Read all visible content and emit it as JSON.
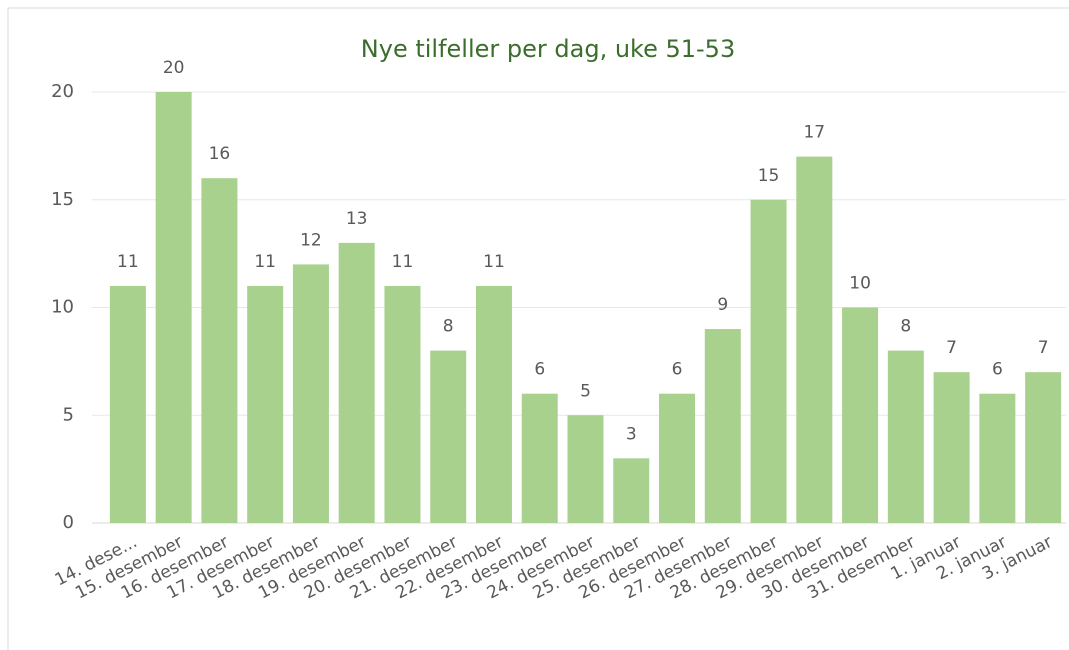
{
  "chart_data": {
    "type": "bar",
    "title": "Nye tilfeller per dag, uke 51-53",
    "categories": [
      "14. dese...",
      "15. desember",
      "16. desember",
      "17. desember",
      "18. desember",
      "19. desember",
      "20. desember",
      "21. desember",
      "22. desember",
      "23. desember",
      "24. desember",
      "25. desember",
      "26. desember",
      "27. desember",
      "28. desember",
      "29. desember",
      "30. desember",
      "31. desember",
      "1. januar",
      "2. januar",
      "3. januar"
    ],
    "values": [
      11,
      20,
      16,
      11,
      12,
      13,
      11,
      8,
      11,
      6,
      5,
      3,
      6,
      9,
      15,
      17,
      10,
      8,
      7,
      6,
      7
    ],
    "color": "#a9d18e",
    "ylim": [
      0,
      20
    ],
    "yticks": [
      0,
      5,
      10,
      15,
      20
    ],
    "grid": true
  }
}
